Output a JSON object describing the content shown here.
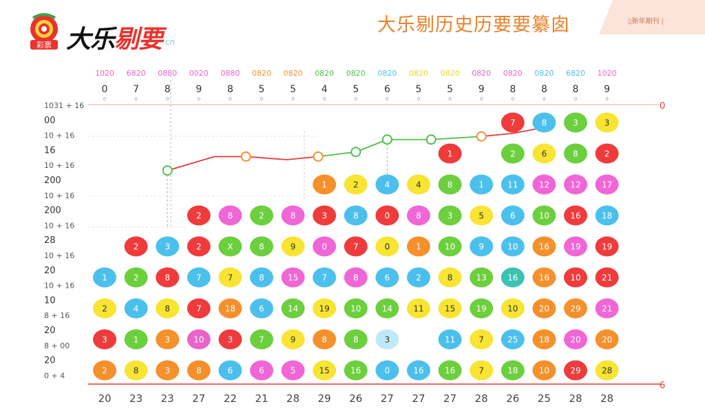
{
  "header": {
    "logo_badge": "彩票",
    "logo_text_main": "大乐",
    "logo_text_red": "剔要",
    "logo_suffix": ".cn",
    "title": "大乐剔历史历要要纂囱",
    "corner_label": "▯新年期刊 |"
  },
  "colors": {
    "red": "#ef3b3b",
    "blue": "#4cc0ec",
    "green": "#6ccf3d",
    "yellow": "#f8e432",
    "pink": "#f066d6",
    "orange": "#f6902b",
    "magenta": "#e964c8",
    "teal": "#3ac3b3",
    "pale": "#bfe9f6",
    "line_red": "#e53935",
    "line_green": "#4ec04a"
  },
  "chart_data": {
    "type": "scatter",
    "title": "",
    "xlabel": "",
    "ylabel": "",
    "columns": [
      {
        "head": "1020",
        "head_color": "#e964c8",
        "sub": "0",
        "bottom": "20"
      },
      {
        "head": "6820",
        "head_color": "#e964c8",
        "sub": "7",
        "bottom": "23"
      },
      {
        "head": "0880",
        "head_color": "#e964c8",
        "sub": "8",
        "bottom": "23"
      },
      {
        "head": "0020",
        "head_color": "#e964c8",
        "sub": "9",
        "bottom": "27"
      },
      {
        "head": "0880",
        "head_color": "#e964c8",
        "sub": "8",
        "bottom": "22"
      },
      {
        "head": "0820",
        "head_color": "#f6902b",
        "sub": "5",
        "bottom": "21"
      },
      {
        "head": "0820",
        "head_color": "#f6902b",
        "sub": "5",
        "bottom": "28"
      },
      {
        "head": "0820",
        "head_color": "#4ec04a",
        "sub": "4",
        "bottom": "29"
      },
      {
        "head": "0820",
        "head_color": "#4ec04a",
        "sub": "5",
        "bottom": "26"
      },
      {
        "head": "0820",
        "head_color": "#4cc0ec",
        "sub": "6",
        "bottom": "27"
      },
      {
        "head": "0820",
        "head_color": "#f2d22a",
        "sub": "5",
        "bottom": "27"
      },
      {
        "head": "0820",
        "head_color": "#f2d22a",
        "sub": "5",
        "bottom": "27"
      },
      {
        "head": "0820",
        "head_color": "#e964c8",
        "sub": "9",
        "bottom": "28"
      },
      {
        "head": "0820",
        "head_color": "#e964c8",
        "sub": "8",
        "bottom": "26"
      },
      {
        "head": "0820",
        "head_color": "#4cc0ec",
        "sub": "8",
        "bottom": "25"
      },
      {
        "head": "6820",
        "head_color": "#4cc0ec",
        "sub": "8",
        "bottom": "28"
      },
      {
        "head": "1020",
        "head_color": "#e964c8",
        "sub": "9",
        "bottom": "28"
      }
    ],
    "y_ticks": [
      {
        "label": "1031 + 16",
        "sub": true
      },
      {
        "label": "00",
        "sub": false
      },
      {
        "label": "10 + 16",
        "sub": true
      },
      {
        "label": "16",
        "sub": false
      },
      {
        "label": "10 + 16",
        "sub": true
      },
      {
        "label": "200",
        "sub": false
      },
      {
        "label": "10 + 16",
        "sub": true
      },
      {
        "label": "200",
        "sub": false
      },
      {
        "label": "10 + 16",
        "sub": true
      },
      {
        "label": "28",
        "sub": false
      },
      {
        "label": "10 + 16",
        "sub": true
      },
      {
        "label": "20",
        "sub": false
      },
      {
        "label": "10 + 16",
        "sub": true
      },
      {
        "label": "10",
        "sub": false
      },
      {
        "label": "8 + 16",
        "sub": true
      },
      {
        "label": "20",
        "sub": false
      },
      {
        "label": "8 + 00",
        "sub": true
      },
      {
        "label": "20",
        "sub": false
      },
      {
        "label": "0 + 4",
        "sub": true
      }
    ],
    "end_labels": {
      "top": "0",
      "bottom": "6"
    },
    "trend_line": {
      "points": [
        {
          "col": 2,
          "row": 1.55,
          "marker": true,
          "marker_color": "#4ec04a"
        },
        {
          "col": 3.5,
          "row": 1.1,
          "marker": false
        },
        {
          "col": 4.5,
          "row": 1.1,
          "marker": true,
          "marker_color": "#f6902b"
        },
        {
          "col": 5.8,
          "row": 1.2,
          "marker": false
        },
        {
          "col": 6.8,
          "row": 1.1,
          "marker": true,
          "marker_color": "#f6902b"
        },
        {
          "col": 8,
          "row": 0.95,
          "marker": true,
          "marker_color": "#4ec04a"
        },
        {
          "col": 9,
          "row": 0.55,
          "marker": true,
          "marker_color": "#4ec04a"
        },
        {
          "col": 10.4,
          "row": 0.55,
          "marker": true,
          "marker_color": "#4ec04a"
        },
        {
          "col": 12,
          "row": 0.45,
          "marker": true,
          "marker_color": "#f6902b"
        },
        {
          "col": 13,
          "row": 0.35,
          "marker": false
        },
        {
          "col": 14.3,
          "row": 0.1,
          "marker": false
        }
      ]
    },
    "balls": [
      {
        "col": 0,
        "row": 5,
        "color": "blue",
        "label": "1"
      },
      {
        "col": 0,
        "row": 6,
        "color": "yellow",
        "label": "2"
      },
      {
        "col": 0,
        "row": 7,
        "color": "red",
        "label": "3"
      },
      {
        "col": 0,
        "row": 8,
        "color": "orange",
        "label": "2"
      },
      {
        "col": 1,
        "row": 4,
        "color": "red",
        "label": "2"
      },
      {
        "col": 1,
        "row": 5,
        "color": "green",
        "label": "2"
      },
      {
        "col": 1,
        "row": 6,
        "color": "blue",
        "label": "4"
      },
      {
        "col": 1,
        "row": 7,
        "color": "green",
        "label": "1"
      },
      {
        "col": 1,
        "row": 8,
        "color": "yellow",
        "label": "8"
      },
      {
        "col": 2,
        "row": 4,
        "color": "blue",
        "label": "3"
      },
      {
        "col": 2,
        "row": 5,
        "color": "red",
        "label": "8"
      },
      {
        "col": 2,
        "row": 6,
        "color": "yellow",
        "label": "8"
      },
      {
        "col": 2,
        "row": 7,
        "color": "orange",
        "label": "3"
      },
      {
        "col": 2,
        "row": 8,
        "color": "orange",
        "label": "3"
      },
      {
        "col": 3,
        "row": 3,
        "color": "red",
        "label": "2"
      },
      {
        "col": 3,
        "row": 4,
        "color": "red",
        "label": "2"
      },
      {
        "col": 3,
        "row": 5,
        "color": "blue",
        "label": "7"
      },
      {
        "col": 3,
        "row": 6,
        "color": "red",
        "label": "7"
      },
      {
        "col": 3,
        "row": 7,
        "color": "magenta",
        "label": "10"
      },
      {
        "col": 3,
        "row": 8,
        "color": "orange",
        "label": "8"
      },
      {
        "col": 4,
        "row": 3,
        "color": "pink",
        "label": "8"
      },
      {
        "col": 4,
        "row": 4,
        "color": "green",
        "label": "X"
      },
      {
        "col": 4,
        "row": 5,
        "color": "yellow",
        "label": "7"
      },
      {
        "col": 4,
        "row": 6,
        "color": "orange",
        "label": "18"
      },
      {
        "col": 4,
        "row": 7,
        "color": "red",
        "label": "3"
      },
      {
        "col": 4,
        "row": 8,
        "color": "blue",
        "label": "6"
      },
      {
        "col": 5,
        "row": 3,
        "color": "green",
        "label": "2"
      },
      {
        "col": 5,
        "row": 4,
        "color": "green",
        "label": "8"
      },
      {
        "col": 5,
        "row": 5,
        "color": "blue",
        "label": "8"
      },
      {
        "col": 5,
        "row": 6,
        "color": "blue",
        "label": "6"
      },
      {
        "col": 5,
        "row": 7,
        "color": "green",
        "label": "7"
      },
      {
        "col": 5,
        "row": 8,
        "color": "pink",
        "label": "6"
      },
      {
        "col": 6,
        "row": 3,
        "color": "pink",
        "label": "8"
      },
      {
        "col": 6,
        "row": 4,
        "color": "yellow",
        "label": "9"
      },
      {
        "col": 6,
        "row": 5,
        "color": "pink",
        "label": "15"
      },
      {
        "col": 6,
        "row": 6,
        "color": "green",
        "label": "14"
      },
      {
        "col": 6,
        "row": 7,
        "color": "yellow",
        "label": "9"
      },
      {
        "col": 6,
        "row": 8,
        "color": "pink",
        "label": "5"
      },
      {
        "col": 7,
        "row": 2,
        "color": "orange",
        "label": "1"
      },
      {
        "col": 7,
        "row": 3,
        "color": "red",
        "label": "3"
      },
      {
        "col": 7,
        "row": 4,
        "color": "pink",
        "label": "0"
      },
      {
        "col": 7,
        "row": 5,
        "color": "blue",
        "label": "7"
      },
      {
        "col": 7,
        "row": 6,
        "color": "yellow",
        "label": "19"
      },
      {
        "col": 7,
        "row": 7,
        "color": "orange",
        "label": "8"
      },
      {
        "col": 7,
        "row": 8,
        "color": "yellow",
        "label": "15"
      },
      {
        "col": 8,
        "row": 2,
        "color": "yellow",
        "label": "2"
      },
      {
        "col": 8,
        "row": 3,
        "color": "blue",
        "label": "8"
      },
      {
        "col": 8,
        "row": 4,
        "color": "red",
        "label": "7"
      },
      {
        "col": 8,
        "row": 5,
        "color": "pink",
        "label": "8"
      },
      {
        "col": 8,
        "row": 6,
        "color": "green",
        "label": "10"
      },
      {
        "col": 8,
        "row": 7,
        "color": "green",
        "label": "8"
      },
      {
        "col": 8,
        "row": 8,
        "color": "green",
        "label": "16"
      },
      {
        "col": 9,
        "row": 2,
        "color": "blue",
        "label": "4"
      },
      {
        "col": 9,
        "row": 3,
        "color": "red",
        "label": "0"
      },
      {
        "col": 9,
        "row": 4,
        "color": "yellow",
        "label": "0"
      },
      {
        "col": 9,
        "row": 5,
        "color": "blue",
        "label": "6"
      },
      {
        "col": 9,
        "row": 6,
        "color": "green",
        "label": "14"
      },
      {
        "col": 9,
        "row": 7,
        "color": "pale",
        "label": "3"
      },
      {
        "col": 9,
        "row": 8,
        "color": "blue",
        "label": "0"
      },
      {
        "col": 10,
        "row": 2,
        "color": "yellow",
        "label": "4"
      },
      {
        "col": 10,
        "row": 3,
        "color": "pink",
        "label": "8"
      },
      {
        "col": 10,
        "row": 4,
        "color": "orange",
        "label": "1"
      },
      {
        "col": 10,
        "row": 5,
        "color": "blue",
        "label": "2"
      },
      {
        "col": 10,
        "row": 6,
        "color": "yellow",
        "label": "11"
      },
      {
        "col": 10,
        "row": 8,
        "color": "blue",
        "label": "16"
      },
      {
        "col": 11,
        "row": 1,
        "color": "red",
        "label": "1"
      },
      {
        "col": 11,
        "row": 2,
        "color": "green",
        "label": "8"
      },
      {
        "col": 11,
        "row": 3,
        "color": "green",
        "label": "3"
      },
      {
        "col": 11,
        "row": 4,
        "color": "green",
        "label": "10"
      },
      {
        "col": 11,
        "row": 5,
        "color": "yellow",
        "label": "8"
      },
      {
        "col": 11,
        "row": 6,
        "color": "yellow",
        "label": "15"
      },
      {
        "col": 11,
        "row": 7,
        "color": "blue",
        "label": "11"
      },
      {
        "col": 11,
        "row": 8,
        "color": "green",
        "label": "16"
      },
      {
        "col": 12,
        "row": 2,
        "color": "blue",
        "label": "1"
      },
      {
        "col": 12,
        "row": 3,
        "color": "yellow",
        "label": "5"
      },
      {
        "col": 12,
        "row": 4,
        "color": "blue",
        "label": "9"
      },
      {
        "col": 12,
        "row": 5,
        "color": "green",
        "label": "13"
      },
      {
        "col": 12,
        "row": 6,
        "color": "green",
        "label": "19"
      },
      {
        "col": 12,
        "row": 7,
        "color": "yellow",
        "label": "7"
      },
      {
        "col": 12,
        "row": 8,
        "color": "yellow",
        "label": "7"
      },
      {
        "col": 13,
        "row": 0,
        "color": "red",
        "label": "7"
      },
      {
        "col": 13,
        "row": 1,
        "color": "green",
        "label": "2"
      },
      {
        "col": 13,
        "row": 2,
        "color": "blue",
        "label": "11"
      },
      {
        "col": 13,
        "row": 3,
        "color": "blue",
        "label": "6"
      },
      {
        "col": 13,
        "row": 4,
        "color": "blue",
        "label": "10"
      },
      {
        "col": 13,
        "row": 5,
        "color": "teal",
        "label": "16"
      },
      {
        "col": 13,
        "row": 6,
        "color": "yellow",
        "label": "10"
      },
      {
        "col": 13,
        "row": 7,
        "color": "blue",
        "label": "25"
      },
      {
        "col": 13,
        "row": 8,
        "color": "green",
        "label": "18"
      },
      {
        "col": 14,
        "row": 0,
        "color": "blue",
        "label": "8"
      },
      {
        "col": 14,
        "row": 1,
        "color": "yellow",
        "label": "6"
      },
      {
        "col": 14,
        "row": 2,
        "color": "pink",
        "label": "12"
      },
      {
        "col": 14,
        "row": 3,
        "color": "green",
        "label": "10"
      },
      {
        "col": 14,
        "row": 4,
        "color": "orange",
        "label": "16"
      },
      {
        "col": 14,
        "row": 5,
        "color": "orange",
        "label": "16"
      },
      {
        "col": 14,
        "row": 6,
        "color": "orange",
        "label": "20"
      },
      {
        "col": 14,
        "row": 7,
        "color": "orange",
        "label": "18"
      },
      {
        "col": 14,
        "row": 8,
        "color": "orange",
        "label": "10"
      },
      {
        "col": 15,
        "row": 0,
        "color": "green",
        "label": "3"
      },
      {
        "col": 15,
        "row": 1,
        "color": "green",
        "label": "8"
      },
      {
        "col": 15,
        "row": 2,
        "color": "pink",
        "label": "12"
      },
      {
        "col": 15,
        "row": 3,
        "color": "red",
        "label": "16"
      },
      {
        "col": 15,
        "row": 4,
        "color": "pink",
        "label": "19"
      },
      {
        "col": 15,
        "row": 5,
        "color": "red",
        "label": "10"
      },
      {
        "col": 15,
        "row": 6,
        "color": "orange",
        "label": "29"
      },
      {
        "col": 15,
        "row": 7,
        "color": "pink",
        "label": "20"
      },
      {
        "col": 15,
        "row": 8,
        "color": "red",
        "label": "29"
      },
      {
        "col": 16,
        "row": 0,
        "color": "yellow",
        "label": "3"
      },
      {
        "col": 16,
        "row": 1,
        "color": "red",
        "label": "2"
      },
      {
        "col": 16,
        "row": 2,
        "color": "pink",
        "label": "17"
      },
      {
        "col": 16,
        "row": 3,
        "color": "blue",
        "label": "18"
      },
      {
        "col": 16,
        "row": 4,
        "color": "red",
        "label": "19"
      },
      {
        "col": 16,
        "row": 5,
        "color": "red",
        "label": "21"
      },
      {
        "col": 16,
        "row": 6,
        "color": "pink",
        "label": "21"
      },
      {
        "col": 16,
        "row": 7,
        "color": "orange",
        "label": "20"
      },
      {
        "col": 16,
        "row": 8,
        "color": "yellow",
        "label": "28"
      }
    ]
  }
}
